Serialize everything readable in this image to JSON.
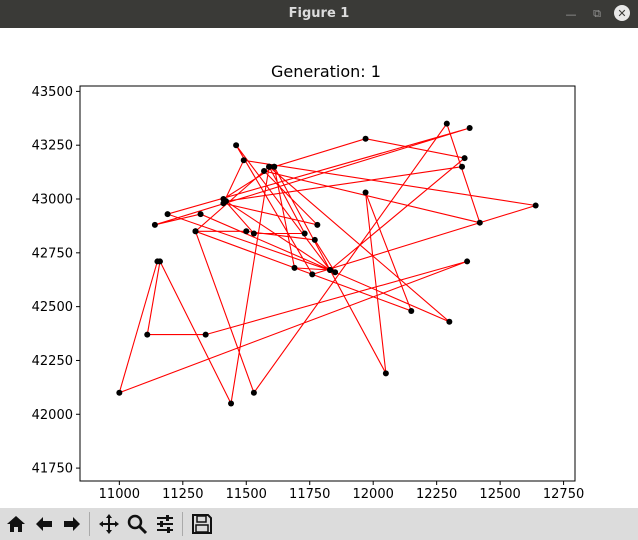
{
  "window": {
    "title": "Figure 1"
  },
  "chart_data": {
    "type": "line",
    "title": "Generation: 1",
    "xlabel": "",
    "ylabel": "",
    "xlim": [
      10845,
      12795
    ],
    "ylim": [
      41690,
      43525
    ],
    "xticks": [
      "11000",
      "11250",
      "11500",
      "11750",
      "12000",
      "12250",
      "12500",
      "12750"
    ],
    "yticks": [
      "41750",
      "42000",
      "42250",
      "42500",
      "42750",
      "43000",
      "43250",
      "43500"
    ],
    "line_color": "#ff0000",
    "marker_color": "#000000",
    "grid": false,
    "series": [
      {
        "x": [
          11150,
          11000,
          12370,
          11340,
          11110,
          11160,
          11440,
          11590,
          11300,
          11500,
          11770,
          11850,
          11190,
          12380,
          11140,
          11320,
          12300,
          11590,
          11730,
          11530,
          11410,
          11610,
          11690,
          11830,
          12360,
          11970,
          11610,
          12050,
          11970,
          12150,
          11300,
          11530,
          12290,
          12420,
          11570,
          11780,
          11410,
          11490,
          12640,
          11760,
          11460,
          11830,
          11420,
          12350
        ],
        "y": [
          42710,
          42100,
          42710,
          42370,
          42370,
          42710,
          42050,
          43150,
          42850,
          42850,
          42810,
          42660,
          42930,
          43330,
          42880,
          42930,
          42430,
          43150,
          42840,
          42840,
          43000,
          43150,
          42680,
          42670,
          43190,
          43280,
          43150,
          42190,
          43030,
          42480,
          42850,
          42100,
          43350,
          42890,
          43130,
          42880,
          42980,
          43180,
          42970,
          42650,
          43250,
          42670,
          42990,
          43150
        ]
      }
    ]
  },
  "toolbar": {
    "icons": [
      "home-icon",
      "back-arrow-icon",
      "forward-arrow-icon",
      "pan-icon",
      "zoom-icon",
      "configure-icon",
      "save-icon"
    ]
  }
}
